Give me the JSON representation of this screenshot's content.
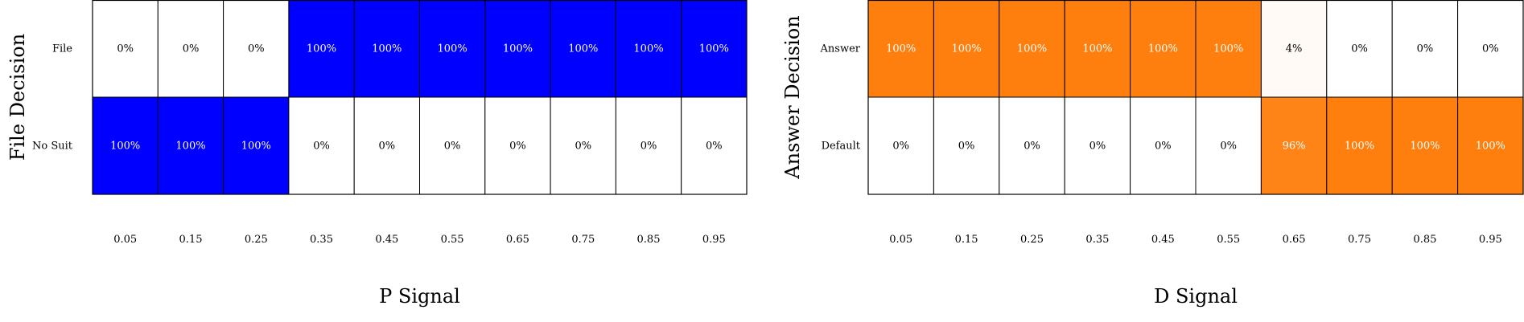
{
  "chart_data": [
    {
      "type": "heatmap",
      "title": "",
      "xlabel": "P Signal",
      "ylabel": "File Decision",
      "x": [
        "0.05",
        "0.15",
        "0.25",
        "0.35",
        "0.45",
        "0.55",
        "0.65",
        "0.75",
        "0.85",
        "0.95"
      ],
      "rows": [
        "File",
        "No Suit"
      ],
      "values": [
        [
          0,
          0,
          0,
          100,
          100,
          100,
          100,
          100,
          100,
          100
        ],
        [
          100,
          100,
          100,
          0,
          0,
          0,
          0,
          0,
          0,
          0
        ]
      ],
      "value_labels": [
        [
          "0%",
          "0%",
          "0%",
          "100%",
          "100%",
          "100%",
          "100%",
          "100%",
          "100%",
          "100%"
        ],
        [
          "100%",
          "100%",
          "100%",
          "0%",
          "0%",
          "0%",
          "0%",
          "0%",
          "0%",
          "0%"
        ]
      ],
      "color": "#0000ff",
      "grid": true
    },
    {
      "type": "heatmap",
      "title": "",
      "xlabel": "D Signal",
      "ylabel": "Answer Decision",
      "x": [
        "0.05",
        "0.15",
        "0.25",
        "0.35",
        "0.45",
        "0.55",
        "0.65",
        "0.75",
        "0.85",
        "0.95"
      ],
      "rows": [
        "Answer",
        "Default"
      ],
      "values": [
        [
          100,
          100,
          100,
          100,
          100,
          100,
          4,
          0,
          0,
          0
        ],
        [
          0,
          0,
          0,
          0,
          0,
          0,
          96,
          100,
          100,
          100
        ]
      ],
      "value_labels": [
        [
          "100%",
          "100%",
          "100%",
          "100%",
          "100%",
          "100%",
          "4%",
          "0%",
          "0%",
          "0%"
        ],
        [
          "0%",
          "0%",
          "0%",
          "0%",
          "0%",
          "0%",
          "96%",
          "100%",
          "100%",
          "100%"
        ]
      ],
      "color": "#ff7f0e",
      "grid": true
    }
  ]
}
